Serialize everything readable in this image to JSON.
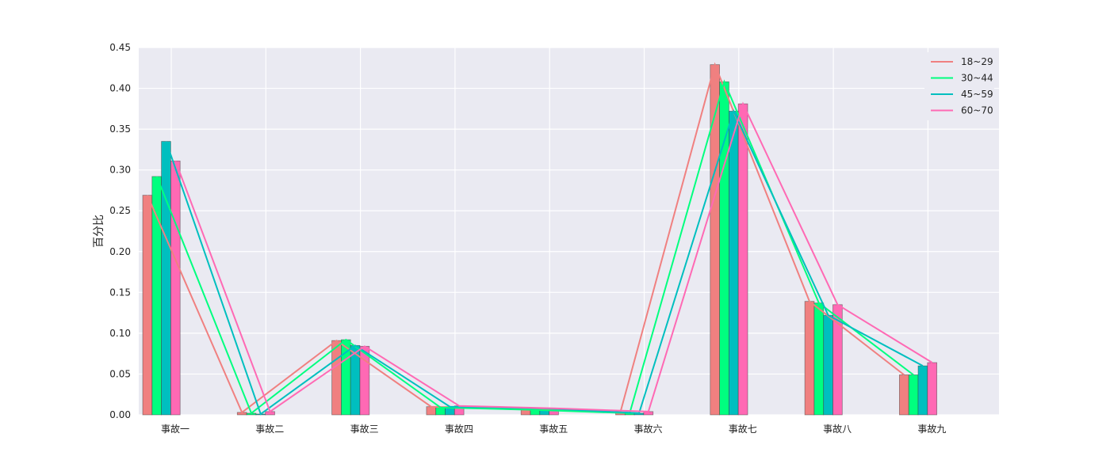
{
  "chart_data": {
    "type": "bar",
    "title": "",
    "xlabel": "",
    "ylabel": "百分比",
    "ylim": [
      0,
      0.45
    ],
    "yticks": [
      "0.00",
      "0.05",
      "0.10",
      "0.15",
      "0.20",
      "0.25",
      "0.30",
      "0.35",
      "0.40",
      "0.45"
    ],
    "categories": [
      "事故一",
      "事故二",
      "事故三",
      "事故四",
      "事故五",
      "事故六",
      "事故七",
      "事故八",
      "事故九"
    ],
    "grid": true,
    "legend_position": "top-right",
    "overlay": "line",
    "series": [
      {
        "name": "18~29",
        "color": "#f08080",
        "values": [
          0.269,
          0.003,
          0.091,
          0.01,
          0.007,
          0.003,
          0.429,
          0.139,
          0.049
        ]
      },
      {
        "name": "30~44",
        "color": "#00ff7f",
        "values": [
          0.292,
          0.002,
          0.092,
          0.009,
          0.006,
          0.002,
          0.408,
          0.137,
          0.049
        ]
      },
      {
        "name": "45~59",
        "color": "#00bfbf",
        "values": [
          0.335,
          0.001,
          0.085,
          0.01,
          0.008,
          0.002,
          0.372,
          0.122,
          0.06
        ]
      },
      {
        "name": "60~70",
        "color": "#ff69b4",
        "values": [
          0.311,
          0.004,
          0.084,
          0.011,
          0.008,
          0.004,
          0.381,
          0.135,
          0.064
        ]
      }
    ]
  }
}
